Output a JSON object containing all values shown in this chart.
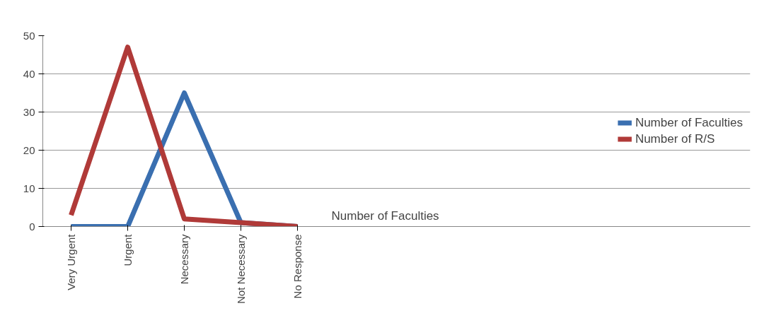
{
  "chart_data": {
    "type": "line",
    "categories": [
      "Very Urgent",
      "Urgent",
      "Necessary",
      "Not Necessary",
      "No Response"
    ],
    "series": [
      {
        "name": "Number of Faculties",
        "color": "#3a6fb0",
        "values": [
          0,
          0,
          35,
          1,
          0
        ]
      },
      {
        "name": "Number of R/S",
        "color": "#b03a38",
        "values": [
          3,
          47,
          2,
          1,
          0
        ]
      }
    ],
    "ylim": [
      0,
      50
    ],
    "yticks": [
      0,
      10,
      20,
      30,
      40,
      50
    ],
    "grid": "y",
    "legend": "right",
    "annotations": [
      "Number of Faculties"
    ]
  }
}
